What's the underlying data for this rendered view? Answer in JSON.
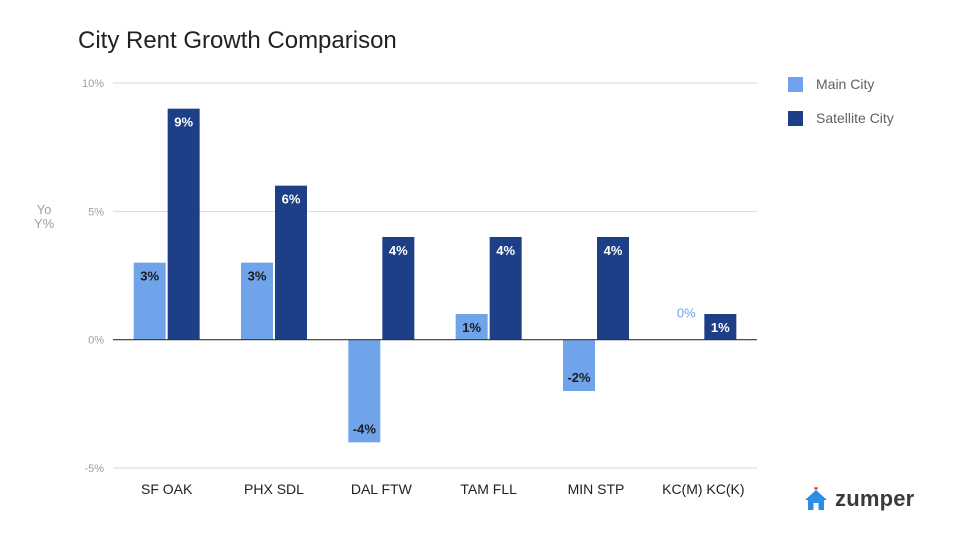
{
  "colors": {
    "main": "#6fa3ea",
    "satellite": "#1c3f87",
    "grid": "#d9d9d9",
    "axis": "#333333",
    "tick": "#9e9e9e",
    "logo_icon": "#2b8ee6",
    "logo_heart": "#e53935"
  },
  "brand": {
    "name": "zumper"
  },
  "chart_data": {
    "type": "bar",
    "title": "City Rent Growth Comparison",
    "xlabel": "",
    "ylabel": "YoY%",
    "categories": [
      "SF OAK",
      "PHX SDL",
      "DAL FTW",
      "TAM FLL",
      "MIN STP",
      "KC(M) KC(K)"
    ],
    "series": [
      {
        "name": "Main City",
        "values": [
          3,
          3,
          -4,
          1,
          -2,
          0
        ],
        "labels": [
          "3%",
          "3%",
          "-4%",
          "1%",
          "-2%",
          "0%"
        ]
      },
      {
        "name": "Satellite City",
        "values": [
          9,
          6,
          4,
          4,
          4,
          1
        ],
        "labels": [
          "9%",
          "6%",
          "4%",
          "4%",
          "4%",
          "1%"
        ]
      }
    ],
    "ylim": [
      -5,
      10
    ],
    "yticks": [
      10,
      5,
      0,
      -5
    ],
    "ytick_labels": [
      "10%",
      "5%",
      "0%",
      "-5%"
    ],
    "grid": true,
    "legend": "right"
  }
}
